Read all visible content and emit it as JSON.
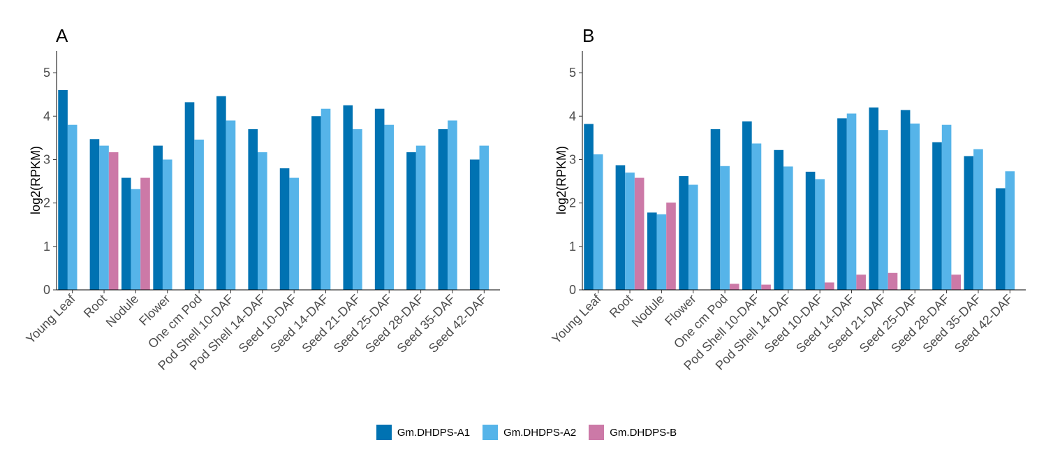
{
  "colors": {
    "A1": "#0072B2",
    "A2": "#56B4E9",
    "B": "#CC79A7"
  },
  "legend": {
    "items": [
      {
        "label": "Gm.DHDPS-A1",
        "color": "#0072B2"
      },
      {
        "label": "Gm.DHDPS-A2",
        "color": "#56B4E9"
      },
      {
        "label": "Gm.DHDPS-B",
        "color": "#CC79A7"
      }
    ]
  },
  "chart_data": [
    {
      "type": "bar",
      "panel": "A",
      "ylabel": "log2(RPKM)",
      "ylim": [
        0,
        5.5
      ],
      "yticks": [
        0,
        1,
        2,
        3,
        4,
        5
      ],
      "categories": [
        "Young Leaf",
        "Root",
        "Nodule",
        "Flower",
        "One cm Pod",
        "Pod Shell 10-DAF",
        "Pod Shell 14-DAF",
        "Seed 10-DAF",
        "Seed 14-DAF",
        "Seed 21-DAF",
        "Seed 25-DAF",
        "Seed 28-DAF",
        "Seed 35-DAF",
        "Seed 42-DAF"
      ],
      "series": [
        {
          "name": "Gm.DHDPS-A1",
          "values": [
            4.6,
            3.47,
            2.58,
            3.32,
            4.32,
            4.46,
            3.7,
            2.8,
            4.0,
            4.25,
            4.17,
            3.17,
            3.7,
            3.0
          ]
        },
        {
          "name": "Gm.DHDPS-A2",
          "values": [
            3.8,
            3.32,
            2.32,
            3.0,
            3.46,
            3.9,
            3.17,
            2.58,
            4.17,
            3.7,
            3.8,
            3.32,
            3.9,
            3.32
          ]
        },
        {
          "name": "Gm.DHDPS-B",
          "values": [
            0,
            3.17,
            2.58,
            0,
            0,
            0,
            0,
            0,
            0,
            0,
            0,
            0,
            0,
            0
          ]
        }
      ],
      "legend": "bottom",
      "grid": false
    },
    {
      "type": "bar",
      "panel": "B",
      "ylabel": "log2(RPKM)",
      "ylim": [
        0,
        5.5
      ],
      "yticks": [
        0,
        1,
        2,
        3,
        4,
        5
      ],
      "categories": [
        "Young Leaf",
        "Root",
        "Nodule",
        "Flower",
        "One cm Pod",
        "Pod Shell 10-DAF",
        "Pod Shell 14-DAF",
        "Seed 10-DAF",
        "Seed 14-DAF",
        "Seed 21-DAF",
        "Seed 25-DAF",
        "Seed 28-DAF",
        "Seed 35-DAF",
        "Seed 42-DAF"
      ],
      "series": [
        {
          "name": "Gm.DHDPS-A1",
          "values": [
            3.82,
            2.87,
            1.78,
            2.62,
            3.7,
            3.88,
            3.22,
            2.72,
            3.95,
            4.2,
            4.14,
            3.4,
            3.08,
            2.34
          ]
        },
        {
          "name": "Gm.DHDPS-A2",
          "values": [
            3.12,
            2.7,
            1.74,
            2.42,
            2.85,
            3.37,
            2.84,
            2.55,
            4.06,
            3.68,
            3.83,
            3.8,
            3.24,
            2.73
          ]
        },
        {
          "name": "Gm.DHDPS-B",
          "values": [
            0,
            2.58,
            2.01,
            0,
            0.14,
            0.12,
            0,
            0.17,
            0.35,
            0.39,
            0,
            0.35,
            0,
            0
          ]
        }
      ],
      "legend": "bottom",
      "grid": false
    }
  ]
}
